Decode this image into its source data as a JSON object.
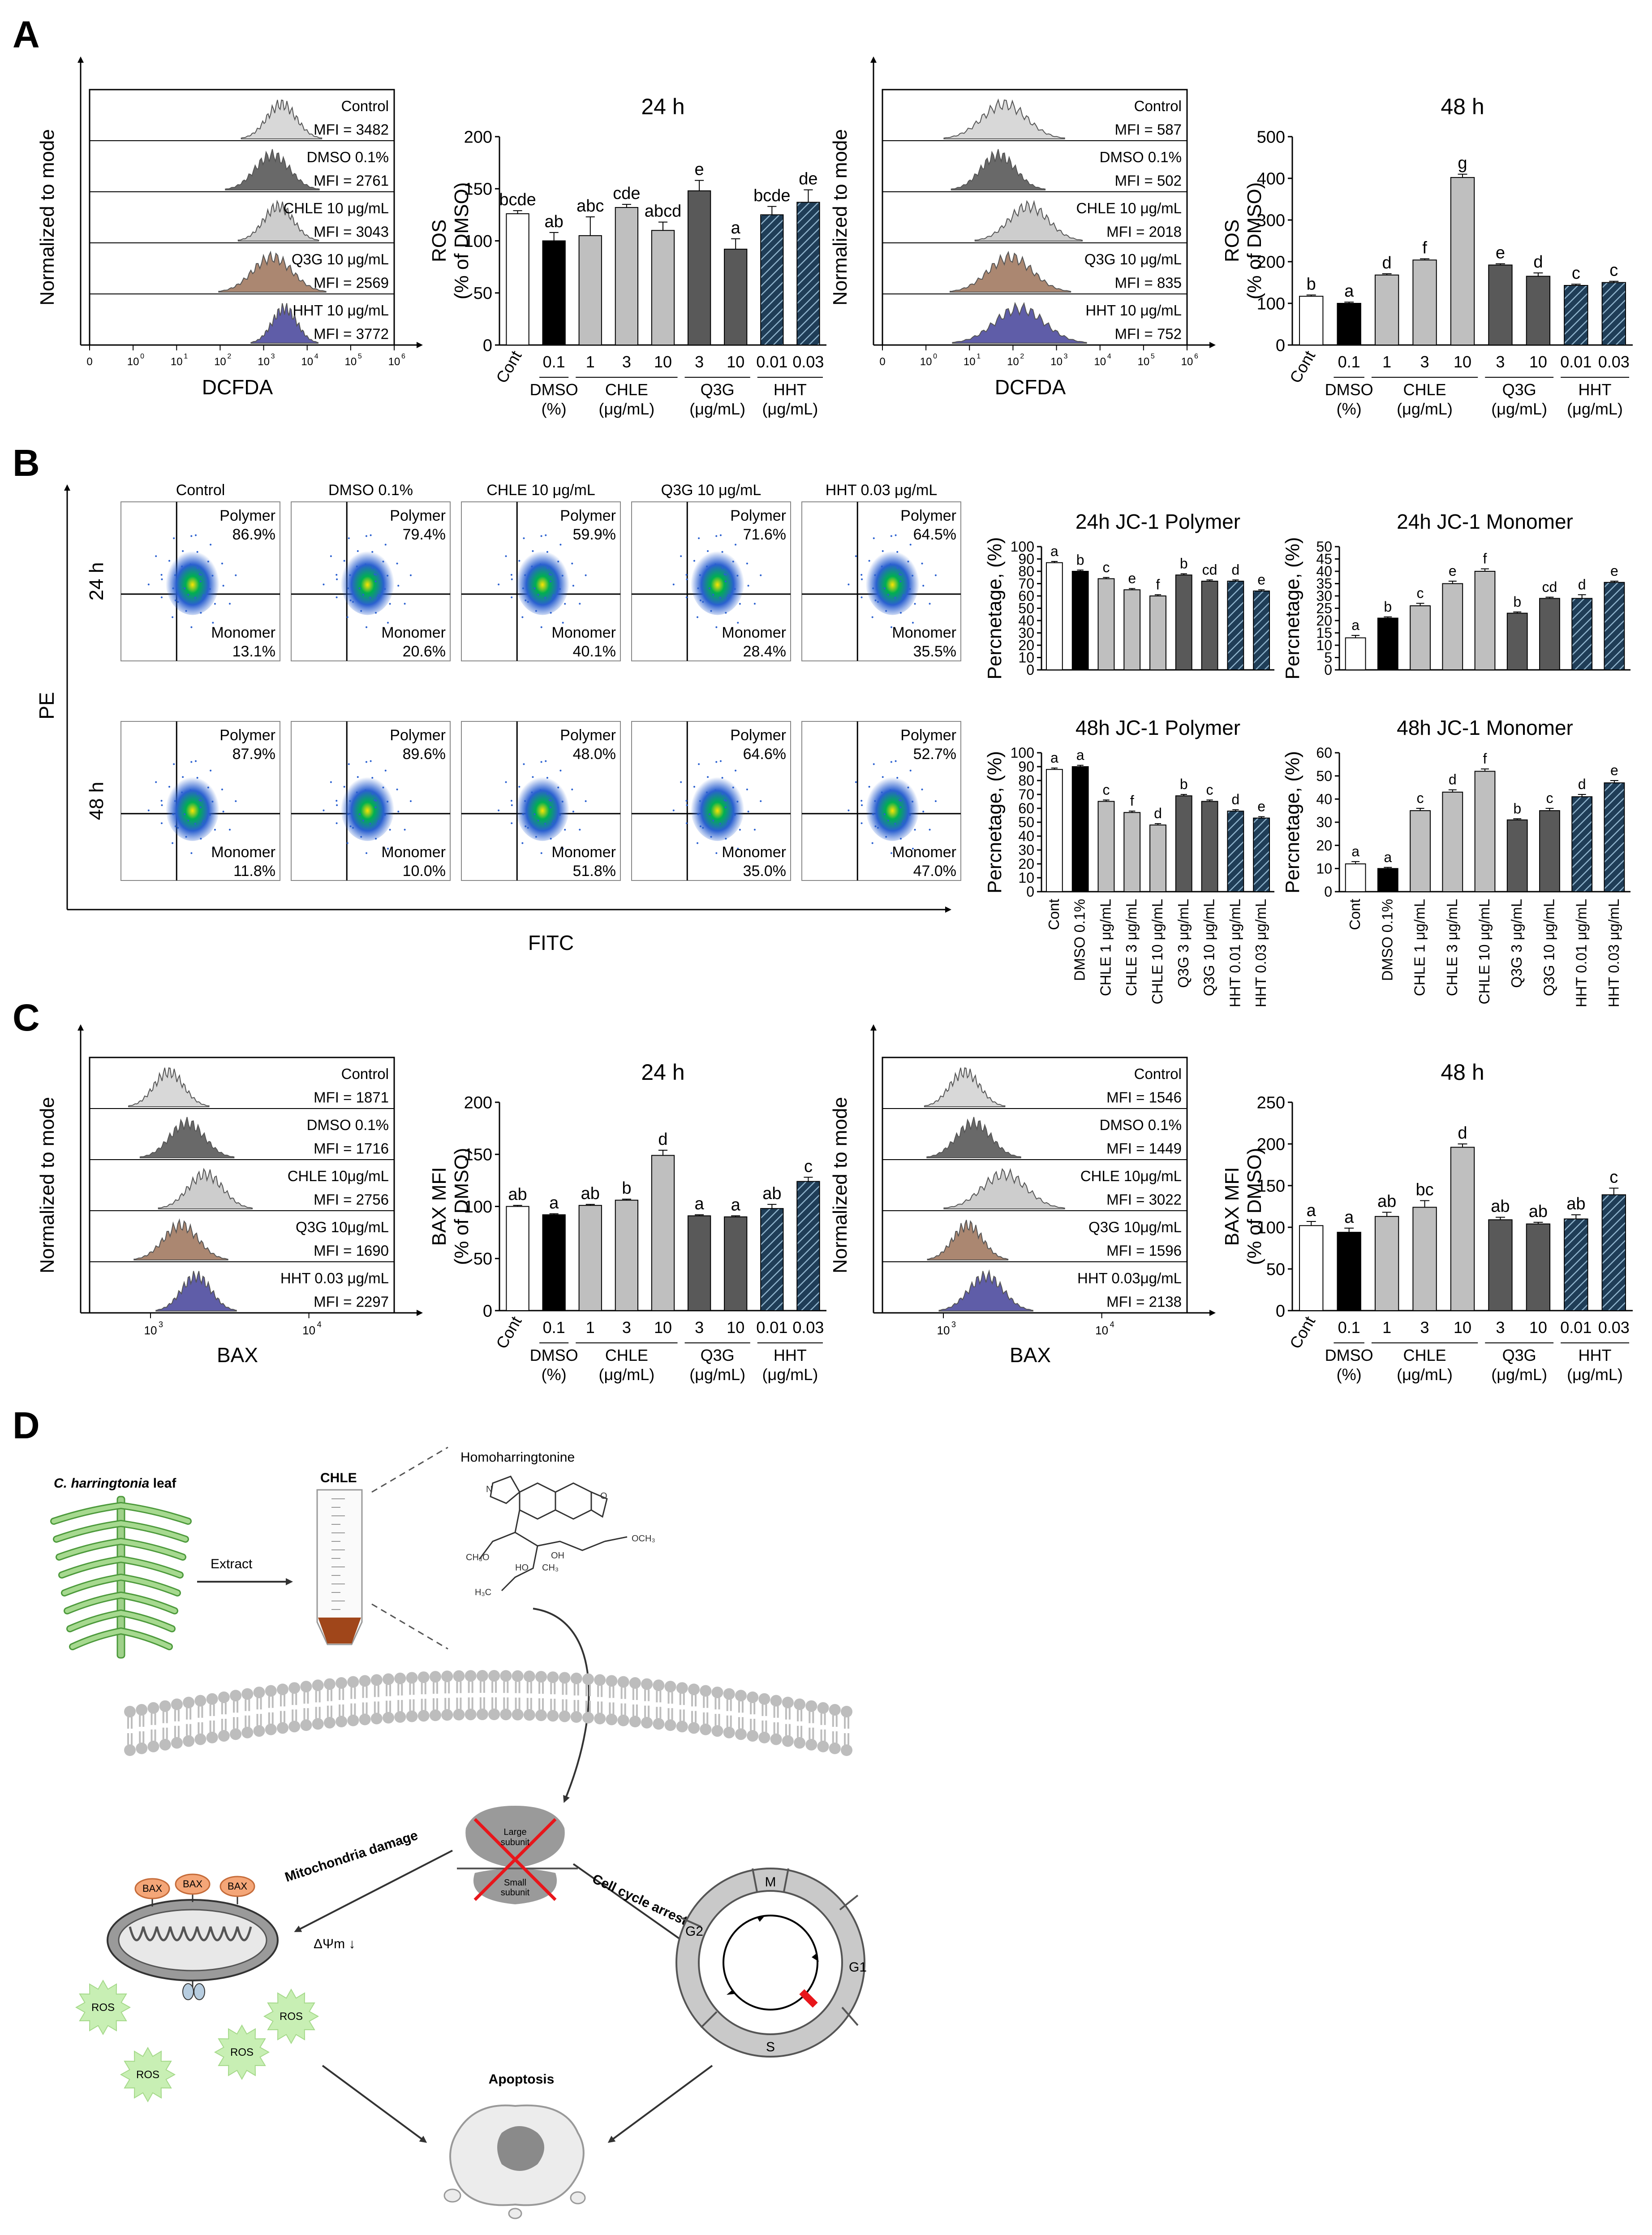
{
  "panels": {
    "A": "A",
    "B": "B",
    "C": "C",
    "D": "D"
  },
  "colors": {
    "control": "#d4d4d4",
    "dmso": "#595959",
    "chle": "#c8c8c8",
    "q3g": "#a27a62",
    "hht": "#4e4b9e",
    "bar_cont": "#ffffff",
    "bar_dmso": "#000000",
    "bar_chle": "#bfbfbf",
    "bar_q3g": "#595959",
    "bar_hht": "#1f3d57"
  },
  "panelA": {
    "hist_xlabel": "DCFDA",
    "hist_ylabel": "Normalized to mode",
    "hist_ticks": [
      "0",
      "10",
      "10",
      "10",
      "10",
      "10",
      "10",
      "10"
    ],
    "hist_tick_exp": [
      "",
      "0",
      "1",
      "2",
      "3",
      "4",
      "5",
      "6"
    ],
    "hist24": [
      {
        "label": "Control",
        "mfi": "MFI = 3482"
      },
      {
        "label": "DMSO 0.1%",
        "mfi": "MFI = 2761"
      },
      {
        "label": "CHLE 10 μg/mL",
        "mfi": "MFI = 3043"
      },
      {
        "label": "Q3G 10 μg/mL",
        "mfi": "MFI = 2569"
      },
      {
        "label": "HHT 10 μg/mL",
        "mfi": "MFI = 3772"
      }
    ],
    "hist48": [
      {
        "label": "Control",
        "mfi": "MFI = 587"
      },
      {
        "label": "DMSO 0.1%",
        "mfi": "MFI = 502"
      },
      {
        "label": "CHLE 10 μg/mL",
        "mfi": "MFI = 2018"
      },
      {
        "label": "Q3G 10 μg/mL",
        "mfi": "MFI = 835"
      },
      {
        "label": "HHT 10 μg/mL",
        "mfi": "MFI = 752"
      }
    ]
  },
  "panelB": {
    "conditions": [
      "Control",
      "DMSO 0.1%",
      "CHLE 10 μg/mL",
      "Q3G 10 μg/mL",
      "HHT 0.03 μg/mL"
    ],
    "rows": [
      "24 h",
      "48 h"
    ],
    "ylabel": "PE",
    "xlabel": "FITC",
    "polymer_label": "Polymer",
    "monomer_label": "Monomer",
    "polymer": [
      [
        "86.9%",
        "79.4%",
        "59.9%",
        "71.6%",
        "64.5%"
      ],
      [
        "87.9%",
        "89.6%",
        "48.0%",
        "64.6%",
        "52.7%"
      ]
    ],
    "monomer": [
      [
        "13.1%",
        "20.6%",
        "40.1%",
        "28.4%",
        "35.5%"
      ],
      [
        "11.8%",
        "10.0%",
        "51.8%",
        "35.0%",
        "47.0%"
      ]
    ]
  },
  "panelC": {
    "hist_xlabel": "BAX",
    "hist_ylabel": "Normalized to mode",
    "hist24": [
      {
        "label": "Control",
        "mfi": "MFI = 1871"
      },
      {
        "label": "DMSO 0.1%",
        "mfi": "MFI = 1716"
      },
      {
        "label": "CHLE 10μg/mL",
        "mfi": "MFI = 2756"
      },
      {
        "label": "Q3G 10μg/mL",
        "mfi": "MFI = 1690"
      },
      {
        "label": "HHT 0.03 μg/mL",
        "mfi": "MFI = 2297"
      }
    ],
    "hist48": [
      {
        "label": "Control",
        "mfi": "MFI = 1546"
      },
      {
        "label": "DMSO 0.1%",
        "mfi": "MFI = 1449"
      },
      {
        "label": "CHLE 10μg/mL",
        "mfi": "MFI = 3022"
      },
      {
        "label": "Q3G 10μg/mL",
        "mfi": "MFI = 1596"
      },
      {
        "label": "HHT 0.03μg/mL",
        "mfi": "MFI = 2138"
      }
    ]
  },
  "chart_data": [
    {
      "id": "A24",
      "type": "bar",
      "title": "24 h",
      "ylabel": [
        "ROS",
        "(% of DMSO)"
      ],
      "ylim": [
        0,
        200
      ],
      "yticks": [
        0,
        50,
        100,
        150,
        200
      ],
      "categories": [
        "Cont",
        "0.1",
        "1",
        "3",
        "10",
        "3",
        "10",
        "0.01",
        "0.03"
      ],
      "values": [
        126,
        100,
        105,
        132,
        110,
        148,
        92,
        125,
        137
      ],
      "errors": [
        3,
        8,
        18,
        3,
        8,
        10,
        10,
        8,
        12
      ],
      "letters": [
        "bcde",
        "ab",
        "abc",
        "cde",
        "abcd",
        "e",
        "a",
        "bcde",
        "de"
      ],
      "groups": [
        {
          "label": "DMSO",
          "unit": "(%)",
          "from": 1,
          "to": 1
        },
        {
          "label": "CHLE",
          "unit": "(μg/mL)",
          "from": 2,
          "to": 4
        },
        {
          "label": "Q3G",
          "unit": "(μg/mL)",
          "from": 5,
          "to": 6
        },
        {
          "label": "HHT",
          "unit": "(μg/mL)",
          "from": 7,
          "to": 8
        }
      ]
    },
    {
      "id": "A48",
      "type": "bar",
      "title": "48 h",
      "ylabel": [
        "ROS",
        "(% of DMSO)"
      ],
      "ylim": [
        0,
        500
      ],
      "yticks": [
        0,
        100,
        200,
        300,
        400,
        500
      ],
      "categories": [
        "Cont",
        "0.1",
        "1",
        "3",
        "10",
        "3",
        "10",
        "0.01",
        "0.03"
      ],
      "values": [
        117,
        100,
        168,
        204,
        402,
        192,
        165,
        143,
        150
      ],
      "errors": [
        3,
        3,
        3,
        3,
        8,
        3,
        8,
        3,
        3
      ],
      "letters": [
        "b",
        "a",
        "d",
        "f",
        "g",
        "e",
        "d",
        "c",
        "c"
      ],
      "groups": [
        {
          "label": "DMSO",
          "unit": "(%)",
          "from": 1,
          "to": 1
        },
        {
          "label": "CHLE",
          "unit": "(μg/mL)",
          "from": 2,
          "to": 4
        },
        {
          "label": "Q3G",
          "unit": "(μg/mL)",
          "from": 5,
          "to": 6
        },
        {
          "label": "HHT",
          "unit": "(μg/mL)",
          "from": 7,
          "to": 8
        }
      ]
    },
    {
      "id": "B24P",
      "type": "bar",
      "title": "24h JC-1 Polymer",
      "ylabel": [
        "Percnetage, (%)"
      ],
      "ylim": [
        0,
        100
      ],
      "yticks": [
        0,
        10,
        20,
        30,
        40,
        50,
        60,
        70,
        80,
        90,
        100
      ],
      "categories": [
        "Cont",
        "DMSO 0.1%",
        "CHLE 1 μg/mL",
        "CHLE 3 μg/mL",
        "CHLE 10 μg/mL",
        "Q3G 3 μg/mL",
        "Q3G 10 μg/mL",
        "HHT 0.01 μg/mL",
        "HHT 0.03 μg/mL"
      ],
      "values": [
        87,
        80,
        74,
        65,
        60,
        77,
        72,
        72,
        64
      ],
      "errors": [
        1,
        1,
        1,
        1,
        1,
        1,
        1,
        1,
        1
      ],
      "letters": [
        "a",
        "b",
        "c",
        "e",
        "f",
        "b",
        "cd",
        "d",
        "e"
      ],
      "show_categories": false
    },
    {
      "id": "B24M",
      "type": "bar",
      "title": "24h JC-1 Monomer",
      "ylabel": [
        "Percnetage, (%)"
      ],
      "ylim": [
        0,
        50
      ],
      "yticks": [
        0,
        5,
        10,
        15,
        20,
        25,
        30,
        35,
        40,
        45,
        50
      ],
      "categories": [
        "Cont",
        "DMSO 0.1%",
        "CHLE 1 μg/mL",
        "CHLE 3 μg/mL",
        "CHLE 10 μg/mL",
        "Q3G 3 μg/mL",
        "Q3G 10 μg/mL",
        "HHT 0.01 μg/mL",
        "HHT 0.03 μg/mL"
      ],
      "values": [
        13,
        21,
        26,
        35,
        40,
        23,
        29,
        29,
        35.5
      ],
      "errors": [
        1,
        0.5,
        1,
        1,
        1,
        0.5,
        0.5,
        1.5,
        0.5
      ],
      "letters": [
        "a",
        "b",
        "c",
        "e",
        "f",
        "b",
        "cd",
        "d",
        "e"
      ],
      "show_categories": false
    },
    {
      "id": "B48P",
      "type": "bar",
      "title": "48h JC-1 Polymer",
      "ylabel": [
        "Percnetage, (%)"
      ],
      "ylim": [
        0,
        100
      ],
      "yticks": [
        0,
        10,
        20,
        30,
        40,
        50,
        60,
        70,
        80,
        90,
        100
      ],
      "categories": [
        "Cont",
        "DMSO 0.1%",
        "CHLE 1 μg/mL",
        "CHLE 3 μg/mL",
        "CHLE 10 μg/mL",
        "Q3G 3 μg/mL",
        "Q3G 10 μg/mL",
        "HHT 0.01 μg/mL",
        "HHT 0.03 μg/mL"
      ],
      "values": [
        88,
        90,
        65,
        57,
        48,
        69,
        65,
        58,
        53
      ],
      "errors": [
        1,
        1,
        1,
        1,
        1,
        1,
        1,
        1,
        1
      ],
      "letters": [
        "a",
        "a",
        "c",
        "f",
        "d",
        "b",
        "c",
        "d",
        "e"
      ],
      "show_categories": true
    },
    {
      "id": "B48M",
      "type": "bar",
      "title": "48h JC-1 Monomer",
      "ylabel": [
        "Percnetage, (%)"
      ],
      "ylim": [
        0,
        60
      ],
      "yticks": [
        0,
        10,
        20,
        30,
        40,
        50,
        60
      ],
      "categories": [
        "Cont",
        "DMSO 0.1%",
        "CHLE 1 μg/mL",
        "CHLE 3 μg/mL",
        "CHLE 10 μg/mL",
        "Q3G 3 μg/mL",
        "Q3G 10 μg/mL",
        "HHT 0.01 μg/mL",
        "HHT 0.03 μg/mL"
      ],
      "values": [
        12,
        10,
        35,
        43,
        52,
        31,
        35,
        41,
        47
      ],
      "errors": [
        1,
        0.5,
        1,
        1,
        1,
        0.5,
        1,
        1,
        1
      ],
      "letters": [
        "a",
        "a",
        "c",
        "d",
        "f",
        "b",
        "c",
        "d",
        "e"
      ],
      "show_categories": true
    },
    {
      "id": "C24",
      "type": "bar",
      "title": "24 h",
      "ylabel": [
        "BAX MFI",
        "(% of DMSO)"
      ],
      "ylim": [
        0,
        200
      ],
      "yticks": [
        0,
        50,
        100,
        150,
        200
      ],
      "categories": [
        "Cont",
        "0.1",
        "1",
        "3",
        "10",
        "3",
        "10",
        "0.01",
        "0.03"
      ],
      "values": [
        100,
        92,
        101,
        106,
        149,
        91,
        90,
        98,
        124
      ],
      "errors": [
        1,
        1,
        1,
        1,
        5,
        1,
        1,
        4,
        4
      ],
      "letters": [
        "ab",
        "a",
        "ab",
        "b",
        "d",
        "a",
        "a",
        "ab",
        "c"
      ],
      "groups": [
        {
          "label": "DMSO",
          "unit": "(%)",
          "from": 1,
          "to": 1
        },
        {
          "label": "CHLE",
          "unit": "(μg/mL)",
          "from": 2,
          "to": 4
        },
        {
          "label": "Q3G",
          "unit": "(μg/mL)",
          "from": 5,
          "to": 6
        },
        {
          "label": "HHT",
          "unit": "(μg/mL)",
          "from": 7,
          "to": 8
        }
      ]
    },
    {
      "id": "C48",
      "type": "bar",
      "title": "48 h",
      "ylabel": [
        "BAX MFI",
        "(% of DMSO)"
      ],
      "ylim": [
        0,
        250
      ],
      "yticks": [
        0,
        50,
        100,
        150,
        200,
        250
      ],
      "categories": [
        "Cont",
        "0.1",
        "1",
        "3",
        "10",
        "3",
        "10",
        "0.01",
        "0.03"
      ],
      "values": [
        102,
        94,
        113,
        124,
        196,
        109,
        104,
        110,
        139
      ],
      "errors": [
        5,
        5,
        5,
        8,
        4,
        3,
        2,
        5,
        8
      ],
      "letters": [
        "a",
        "a",
        "ab",
        "bc",
        "d",
        "ab",
        "ab",
        "ab",
        "c"
      ],
      "groups": [
        {
          "label": "DMSO",
          "unit": "(%)",
          "from": 1,
          "to": 1
        },
        {
          "label": "CHLE",
          "unit": "(μg/mL)",
          "from": 2,
          "to": 4
        },
        {
          "label": "Q3G",
          "unit": "(μg/mL)",
          "from": 5,
          "to": 6
        },
        {
          "label": "HHT",
          "unit": "(μg/mL)",
          "from": 7,
          "to": 8
        }
      ]
    }
  ],
  "panelD": {
    "leaf_label_italic": "C. harringtonia",
    "leaf_label_rest": " leaf",
    "extract": "Extract",
    "chle": "CHLE",
    "compound": "Homoharringtonine",
    "large_subunit": [
      "Large",
      "subunit"
    ],
    "small_subunit": [
      "Small",
      "subunit"
    ],
    "mito_damage": "Mitochondria damage",
    "cell_cycle_arrest": "Cell cycle arrest",
    "bax": "BAX",
    "ros": "ROS",
    "delta_psi": "ΔΨm ↓",
    "apoptosis": "Apoptosis",
    "phases": {
      "m": "M",
      "g1": "G1",
      "s": "S",
      "g2": "G2"
    },
    "atoms": [
      "CH₃O",
      "OCH₃",
      "OH",
      "HO",
      "CH₃",
      "H₃C",
      "N",
      "O"
    ]
  }
}
